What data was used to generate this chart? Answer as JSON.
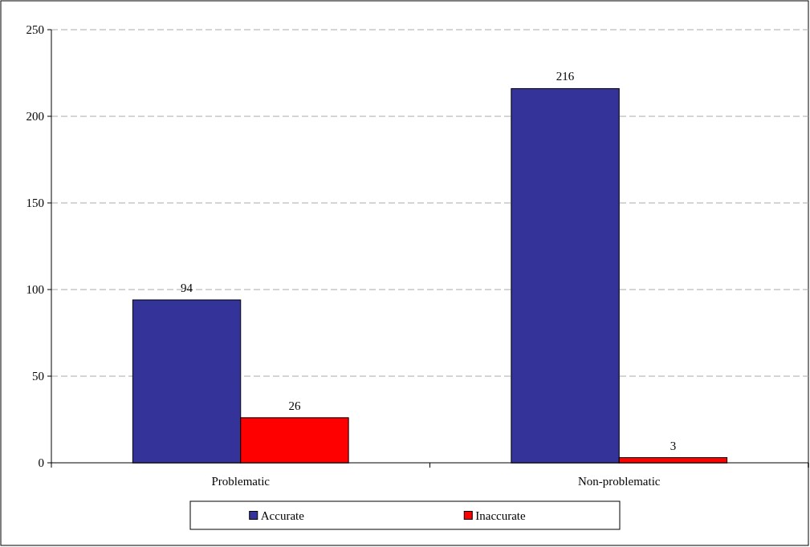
{
  "chart_data": {
    "type": "bar",
    "categories": [
      "Problematic",
      "Non-problematic"
    ],
    "series": [
      {
        "name": "Accurate",
        "color": "#333399",
        "values": [
          94,
          216
        ]
      },
      {
        "name": "Inaccurate",
        "color": "#ff0000",
        "values": [
          26,
          3
        ]
      }
    ],
    "ylim": [
      0,
      250
    ],
    "yticks": [
      0,
      50,
      100,
      150,
      200,
      250
    ],
    "grid": "y",
    "legend": "bottom",
    "data_labels": true
  }
}
